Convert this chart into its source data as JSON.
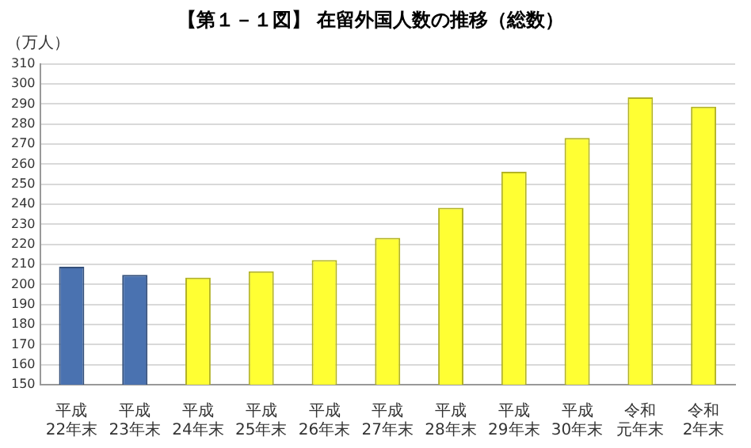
{
  "chart_data": {
    "type": "bar",
    "title": "【第１－１図】 在留外国人数の推移（総数）",
    "ylabel": "（万人）",
    "categories": [
      "平成22年末",
      "平成23年末",
      "平成24年末",
      "平成25年末",
      "平成26年末",
      "平成27年末",
      "平成28年末",
      "平成29年末",
      "平成30年末",
      "令和元年末",
      "令和2年末"
    ],
    "values": [
      208.8,
      204.8,
      203.4,
      206.6,
      212.2,
      223.2,
      238.3,
      256.2,
      273.1,
      293.3,
      288.7
    ],
    "colors": [
      "#4a72b0",
      "#4a72b0",
      "#ffff33",
      "#ffff33",
      "#ffff33",
      "#ffff33",
      "#ffff33",
      "#ffff33",
      "#ffff33",
      "#ffff33",
      "#ffff33"
    ],
    "ylim": [
      150,
      310
    ],
    "yticks": [
      150,
      160,
      170,
      180,
      190,
      200,
      210,
      220,
      230,
      240,
      250,
      260,
      270,
      280,
      290,
      300,
      310
    ],
    "grid": "y",
    "legend": false
  }
}
